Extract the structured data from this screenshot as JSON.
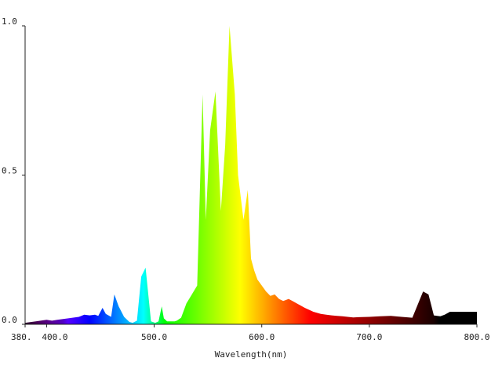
{
  "chart_data": {
    "type": "area",
    "title": "",
    "xlabel": "Wavelength(nm)",
    "ylabel": "",
    "xlim": [
      380,
      800
    ],
    "ylim": [
      0,
      1.0
    ],
    "grid": false,
    "legend": "none",
    "fill": "wavelength spectrum gradient",
    "x_ticks": [
      {
        "value": 380,
        "label": "380."
      },
      {
        "value": 400,
        "label": "400.0"
      },
      {
        "value": 500,
        "label": "500.0"
      },
      {
        "value": 600,
        "label": "600.0"
      },
      {
        "value": 700,
        "label": "700.0"
      },
      {
        "value": 800,
        "label": "800.0"
      }
    ],
    "y_ticks": [
      {
        "value": 0.0,
        "label": "0.0"
      },
      {
        "value": 0.5,
        "label": "0.5"
      },
      {
        "value": 1.0,
        "label": "1.0"
      }
    ],
    "series": [
      {
        "x": [
          380,
          390,
          400,
          405,
          410,
          420,
          430,
          435,
          440,
          445,
          448,
          452,
          455,
          460,
          463,
          467,
          472,
          477,
          480,
          484,
          488,
          492,
          497,
          501,
          504,
          507,
          509,
          512,
          516,
          519,
          521,
          525,
          530,
          535,
          540,
          545,
          548,
          552,
          557,
          562,
          566,
          570,
          575,
          578,
          583,
          587,
          590,
          593,
          596,
          600,
          604,
          608,
          612,
          616,
          620,
          625,
          630,
          640,
          648,
          655,
          660,
          665,
          670,
          675,
          680,
          685,
          690,
          700,
          710,
          720,
          730,
          740,
          750,
          755,
          760,
          763,
          766,
          770,
          775,
          780,
          785,
          790,
          795,
          800
        ],
        "y": [
          0.005,
          0.01,
          0.015,
          0.012,
          0.015,
          0.02,
          0.025,
          0.032,
          0.03,
          0.032,
          0.028,
          0.055,
          0.035,
          0.025,
          0.1,
          0.06,
          0.025,
          0.008,
          0.005,
          0.012,
          0.16,
          0.19,
          0.01,
          0.005,
          0.01,
          0.06,
          0.02,
          0.01,
          0.01,
          0.01,
          0.012,
          0.022,
          0.07,
          0.1,
          0.13,
          0.77,
          0.35,
          0.65,
          0.78,
          0.38,
          0.6,
          1.0,
          0.77,
          0.5,
          0.35,
          0.45,
          0.22,
          0.18,
          0.15,
          0.13,
          0.11,
          0.095,
          0.1,
          0.085,
          0.078,
          0.085,
          0.075,
          0.055,
          0.042,
          0.035,
          0.032,
          0.03,
          0.028,
          0.027,
          0.025,
          0.023,
          0.024,
          0.025,
          0.027,
          0.028,
          0.025,
          0.022,
          0.11,
          0.1,
          0.03,
          0.028,
          0.027,
          0.032,
          0.042,
          0.042,
          0.042,
          0.042,
          0.042,
          0.042
        ]
      }
    ]
  }
}
